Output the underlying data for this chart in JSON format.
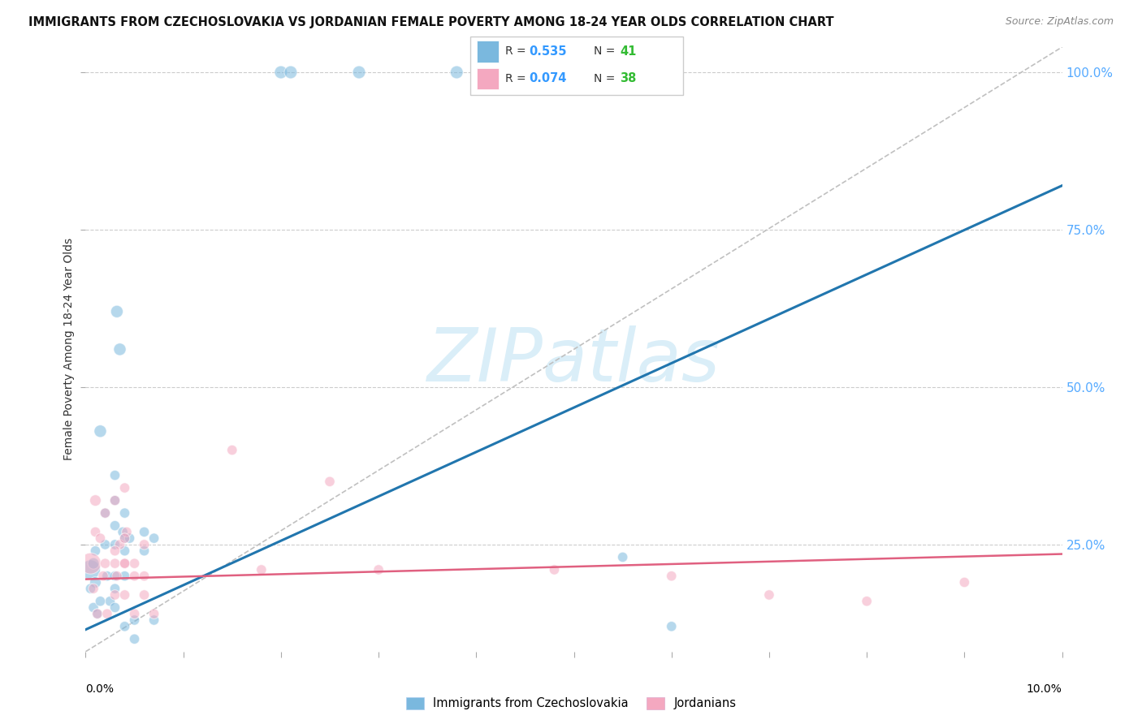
{
  "title": "IMMIGRANTS FROM CZECHOSLOVAKIA VS JORDANIAN FEMALE POVERTY AMONG 18-24 YEAR OLDS CORRELATION CHART",
  "source": "Source: ZipAtlas.com",
  "ylabel": "Female Poverty Among 18-24 Year Olds",
  "right_yticks": [
    0.25,
    0.5,
    0.75,
    1.0
  ],
  "right_yticklabels": [
    "25.0%",
    "50.0%",
    "75.0%",
    "100.0%"
  ],
  "xmin": 0.0,
  "xmax": 0.1,
  "ymin": 0.08,
  "ymax": 1.04,
  "czech_color": "#7ab8de",
  "jordan_color": "#f4a8c0",
  "czech_line_color": "#2176ae",
  "jordan_line_color": "#e06080",
  "ref_line_color": "#c0c0c0",
  "watermark_color": "#daeef8",
  "legend_R_color": "#3399ff",
  "legend_N_color": "#33bb33",
  "czech_line_y0": 0.115,
  "czech_line_y1": 0.82,
  "jordan_line_y0": 0.195,
  "jordan_line_y1": 0.235,
  "ref_line_y0": 0.08,
  "ref_line_y1": 1.04,
  "czech_scatter_x": [
    0.0005,
    0.0008,
    0.001,
    0.001,
    0.0015,
    0.002,
    0.002,
    0.0022,
    0.0025,
    0.003,
    0.003,
    0.003,
    0.003,
    0.003,
    0.003,
    0.0032,
    0.0035,
    0.0038,
    0.004,
    0.004,
    0.004,
    0.004,
    0.004,
    0.0045,
    0.005,
    0.005,
    0.006,
    0.006,
    0.007,
    0.007,
    0.02,
    0.021,
    0.028,
    0.038,
    0.055,
    0.06,
    0.0005,
    0.0008,
    0.0012,
    0.0015,
    0.003
  ],
  "czech_scatter_y": [
    0.21,
    0.22,
    0.19,
    0.24,
    0.43,
    0.25,
    0.3,
    0.2,
    0.16,
    0.36,
    0.28,
    0.25,
    0.2,
    0.18,
    0.15,
    0.62,
    0.56,
    0.27,
    0.3,
    0.26,
    0.24,
    0.2,
    0.12,
    0.26,
    0.13,
    0.1,
    0.27,
    0.24,
    0.26,
    0.13,
    1.0,
    1.0,
    1.0,
    1.0,
    0.23,
    0.12,
    0.18,
    0.15,
    0.14,
    0.16,
    0.32
  ],
  "czech_scatter_sizes": [
    300,
    100,
    100,
    80,
    120,
    80,
    80,
    80,
    80,
    80,
    80,
    80,
    80,
    80,
    80,
    120,
    120,
    80,
    80,
    80,
    80,
    80,
    80,
    80,
    80,
    80,
    80,
    80,
    80,
    80,
    130,
    130,
    130,
    130,
    80,
    80,
    80,
    80,
    80,
    80,
    80
  ],
  "jordan_scatter_x": [
    0.0005,
    0.001,
    0.001,
    0.0015,
    0.002,
    0.002,
    0.003,
    0.003,
    0.003,
    0.0035,
    0.004,
    0.004,
    0.004,
    0.0042,
    0.005,
    0.005,
    0.006,
    0.006,
    0.006,
    0.007,
    0.015,
    0.018,
    0.025,
    0.03,
    0.048,
    0.06,
    0.07,
    0.08,
    0.0008,
    0.0012,
    0.0018,
    0.0022,
    0.003,
    0.0032,
    0.004,
    0.004,
    0.005,
    0.09
  ],
  "jordan_scatter_y": [
    0.22,
    0.32,
    0.27,
    0.26,
    0.3,
    0.22,
    0.32,
    0.22,
    0.17,
    0.25,
    0.34,
    0.22,
    0.17,
    0.27,
    0.22,
    0.2,
    0.25,
    0.2,
    0.17,
    0.14,
    0.4,
    0.21,
    0.35,
    0.21,
    0.21,
    0.2,
    0.17,
    0.16,
    0.18,
    0.14,
    0.2,
    0.14,
    0.24,
    0.2,
    0.26,
    0.22,
    0.14,
    0.19
  ],
  "jordan_scatter_sizes": [
    350,
    100,
    80,
    80,
    80,
    80,
    80,
    80,
    80,
    80,
    80,
    80,
    80,
    80,
    80,
    80,
    80,
    80,
    80,
    80,
    80,
    80,
    80,
    80,
    80,
    80,
    80,
    80,
    80,
    80,
    80,
    80,
    80,
    80,
    80,
    80,
    80,
    80
  ]
}
